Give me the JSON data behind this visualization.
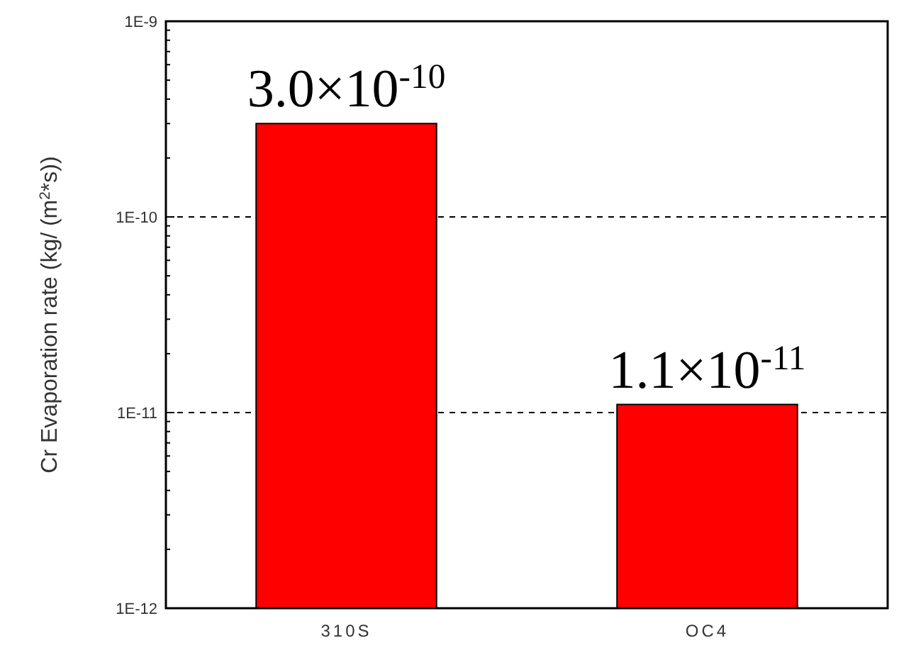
{
  "chart_data": {
    "type": "bar",
    "categories": [
      "310S",
      "OC4"
    ],
    "values": [
      3e-10,
      1.1e-11
    ],
    "color": "#ff0000",
    "value_labels": [
      "3.0×10$^{-10}$",
      "1.1×10$^{-11}$"
    ],
    "ylabel": "Cr Evaporation rate (kg/ (m$^{2}$*s))",
    "log": true,
    "ylim": [
      1e-12,
      1e-09
    ],
    "yticks": [
      {
        "value": 1e-12,
        "label": "1E-12"
      },
      {
        "value": 1e-11,
        "label": "1E-11"
      },
      {
        "value": 1e-10,
        "label": "1E-10"
      },
      {
        "value": 1e-09,
        "label": "1E-9"
      }
    ],
    "grid": "y",
    "line_style": "dashed"
  }
}
